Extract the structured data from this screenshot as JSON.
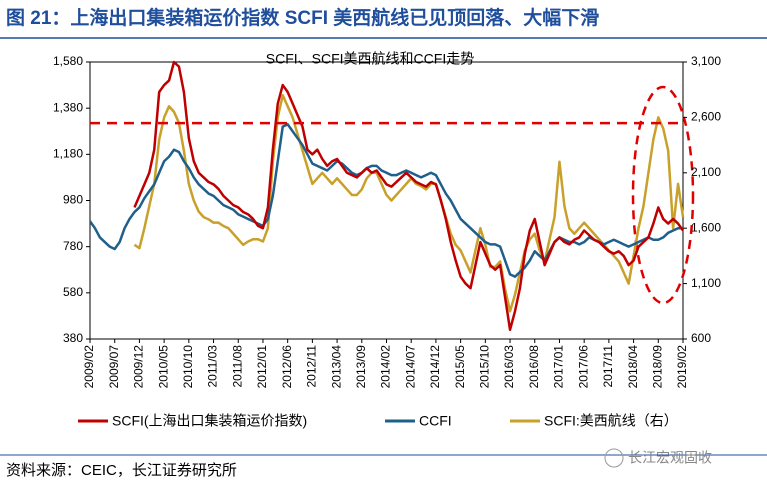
{
  "header": {
    "title": "图 21：上海出口集装箱运价指数 SCFI 美西航线已见顶回落、大幅下滑"
  },
  "chart_data": {
    "type": "line",
    "title": "SCFI、SCFI美西航线和CCFI走势",
    "categories": [
      "2009/02",
      null,
      null,
      null,
      null,
      "2009/07",
      null,
      null,
      null,
      null,
      "2009/12",
      null,
      null,
      null,
      null,
      "2010/05",
      null,
      null,
      null,
      null,
      "2010/10",
      null,
      null,
      null,
      null,
      "2011/03",
      null,
      null,
      null,
      null,
      "2011/08",
      null,
      null,
      null,
      null,
      "2012/01",
      null,
      null,
      null,
      null,
      "2012/06",
      null,
      null,
      null,
      null,
      "2012/11",
      null,
      null,
      null,
      null,
      "2013/04",
      null,
      null,
      null,
      null,
      "2013/09",
      null,
      null,
      null,
      null,
      "2014/02",
      null,
      null,
      null,
      null,
      "2014/07",
      null,
      null,
      null,
      null,
      "2014/12",
      null,
      null,
      null,
      null,
      "2015/05",
      null,
      null,
      null,
      null,
      "2015/10",
      null,
      null,
      null,
      null,
      "2016/03",
      null,
      null,
      null,
      null,
      "2016/08",
      null,
      null,
      null,
      null,
      "2017/01",
      null,
      null,
      null,
      null,
      "2017/06",
      null,
      null,
      null,
      null,
      "2017/11",
      null,
      null,
      null,
      null,
      "2018/04",
      null,
      null,
      null,
      null,
      "2018/09",
      null,
      null,
      null,
      null,
      "2019/02"
    ],
    "series": [
      {
        "name": "SCFI(上海出口集装箱运价指数)",
        "color": "#c00000",
        "axis": "y",
        "values": [
          null,
          null,
          null,
          null,
          null,
          null,
          null,
          null,
          null,
          950,
          1000,
          1050,
          1100,
          1200,
          1450,
          1480,
          1500,
          1580,
          1560,
          1450,
          1250,
          1150,
          1100,
          1080,
          1060,
          1050,
          1030,
          1000,
          980,
          960,
          950,
          930,
          920,
          900,
          870,
          860,
          950,
          1200,
          1400,
          1480,
          1450,
          1400,
          1350,
          1300,
          1200,
          1180,
          1200,
          1160,
          1130,
          1150,
          1160,
          1130,
          1100,
          1090,
          1080,
          1100,
          1120,
          1100,
          1110,
          1080,
          1050,
          1040,
          1060,
          1080,
          1100,
          1080,
          1060,
          1050,
          1040,
          1060,
          1050,
          980,
          900,
          800,
          720,
          650,
          620,
          600,
          700,
          800,
          750,
          700,
          680,
          700,
          560,
          420,
          500,
          600,
          750,
          850,
          900,
          800,
          700,
          750,
          800,
          820,
          800,
          790,
          810,
          820,
          850,
          830,
          810,
          800,
          780,
          760,
          750,
          760,
          740,
          700,
          720,
          780,
          800,
          820,
          880,
          950,
          900,
          880,
          900,
          880,
          850
        ]
      },
      {
        "name": "CCFI",
        "color": "#1f5f8b",
        "axis": "y",
        "values": [
          890,
          860,
          820,
          800,
          780,
          770,
          800,
          860,
          900,
          930,
          950,
          990,
          1020,
          1050,
          1100,
          1150,
          1170,
          1200,
          1190,
          1150,
          1120,
          1080,
          1050,
          1030,
          1010,
          1000,
          980,
          960,
          950,
          940,
          920,
          910,
          900,
          890,
          880,
          870,
          900,
          1000,
          1150,
          1300,
          1310,
          1280,
          1250,
          1220,
          1180,
          1140,
          1130,
          1120,
          1110,
          1130,
          1150,
          1140,
          1120,
          1100,
          1090,
          1100,
          1120,
          1130,
          1130,
          1110,
          1100,
          1090,
          1090,
          1100,
          1110,
          1100,
          1090,
          1080,
          1090,
          1100,
          1090,
          1050,
          1010,
          980,
          940,
          900,
          880,
          860,
          840,
          820,
          800,
          790,
          790,
          780,
          720,
          660,
          650,
          670,
          690,
          720,
          760,
          740,
          720,
          760,
          800,
          820,
          810,
          800,
          800,
          790,
          800,
          820,
          810,
          800,
          790,
          800,
          810,
          800,
          790,
          780,
          790,
          800,
          810,
          820,
          810,
          810,
          820,
          840,
          850,
          860,
          860
        ]
      },
      {
        "name": "SCFI:美西航线（右）",
        "color": "#c8a02a",
        "axis": "y2",
        "values": [
          null,
          null,
          null,
          null,
          null,
          null,
          null,
          null,
          null,
          1450,
          1420,
          1600,
          1800,
          2000,
          2400,
          2600,
          2700,
          2650,
          2550,
          2300,
          2000,
          1850,
          1750,
          1700,
          1680,
          1650,
          1650,
          1620,
          1600,
          1550,
          1500,
          1450,
          1480,
          1500,
          1500,
          1480,
          1600,
          2200,
          2600,
          2800,
          2700,
          2600,
          2450,
          2300,
          2150,
          2000,
          2050,
          2100,
          2050,
          2000,
          2050,
          2000,
          1950,
          1900,
          1900,
          1950,
          2050,
          2100,
          2100,
          2000,
          1900,
          1850,
          1900,
          1950,
          2000,
          2050,
          2000,
          1980,
          1950,
          2000,
          2000,
          1850,
          1700,
          1550,
          1450,
          1400,
          1300,
          1200,
          1400,
          1600,
          1450,
          1250,
          1250,
          1300,
          1050,
          850,
          1000,
          1200,
          1400,
          1500,
          1550,
          1400,
          1300,
          1500,
          1700,
          2200,
          1800,
          1600,
          1550,
          1600,
          1650,
          1600,
          1550,
          1500,
          1450,
          1400,
          1350,
          1300,
          1200,
          1100,
          1350,
          1600,
          1800,
          2100,
          2400,
          2600,
          2500,
          2300,
          1600,
          2000,
          1700
        ]
      }
    ],
    "ylim": [
      380,
      1580
    ],
    "yticks": [
      380,
      580,
      780,
      980,
      {
        "value": 1180,
        "label": "1,180"
      },
      {
        "value": 1380,
        "label": "1,380"
      },
      {
        "value": 1580,
        "label": "1,580"
      }
    ],
    "y2lim": [
      600,
      3100
    ],
    "y2ticks": [
      600,
      {
        "value": 1100,
        "label": "1,100"
      },
      {
        "value": 1600,
        "label": "1,600"
      },
      {
        "value": 2100,
        "label": "2,100"
      },
      {
        "value": 2600,
        "label": "2,600"
      },
      {
        "value": 3100,
        "label": "3,100"
      }
    ],
    "reference_line": {
      "value": 1315,
      "color": "#e00000"
    },
    "grid": false,
    "legend": "bottom"
  },
  "footer": {
    "source": "资料来源：CEIC，长江证券研究所",
    "watermark": "长江宏观固收"
  }
}
